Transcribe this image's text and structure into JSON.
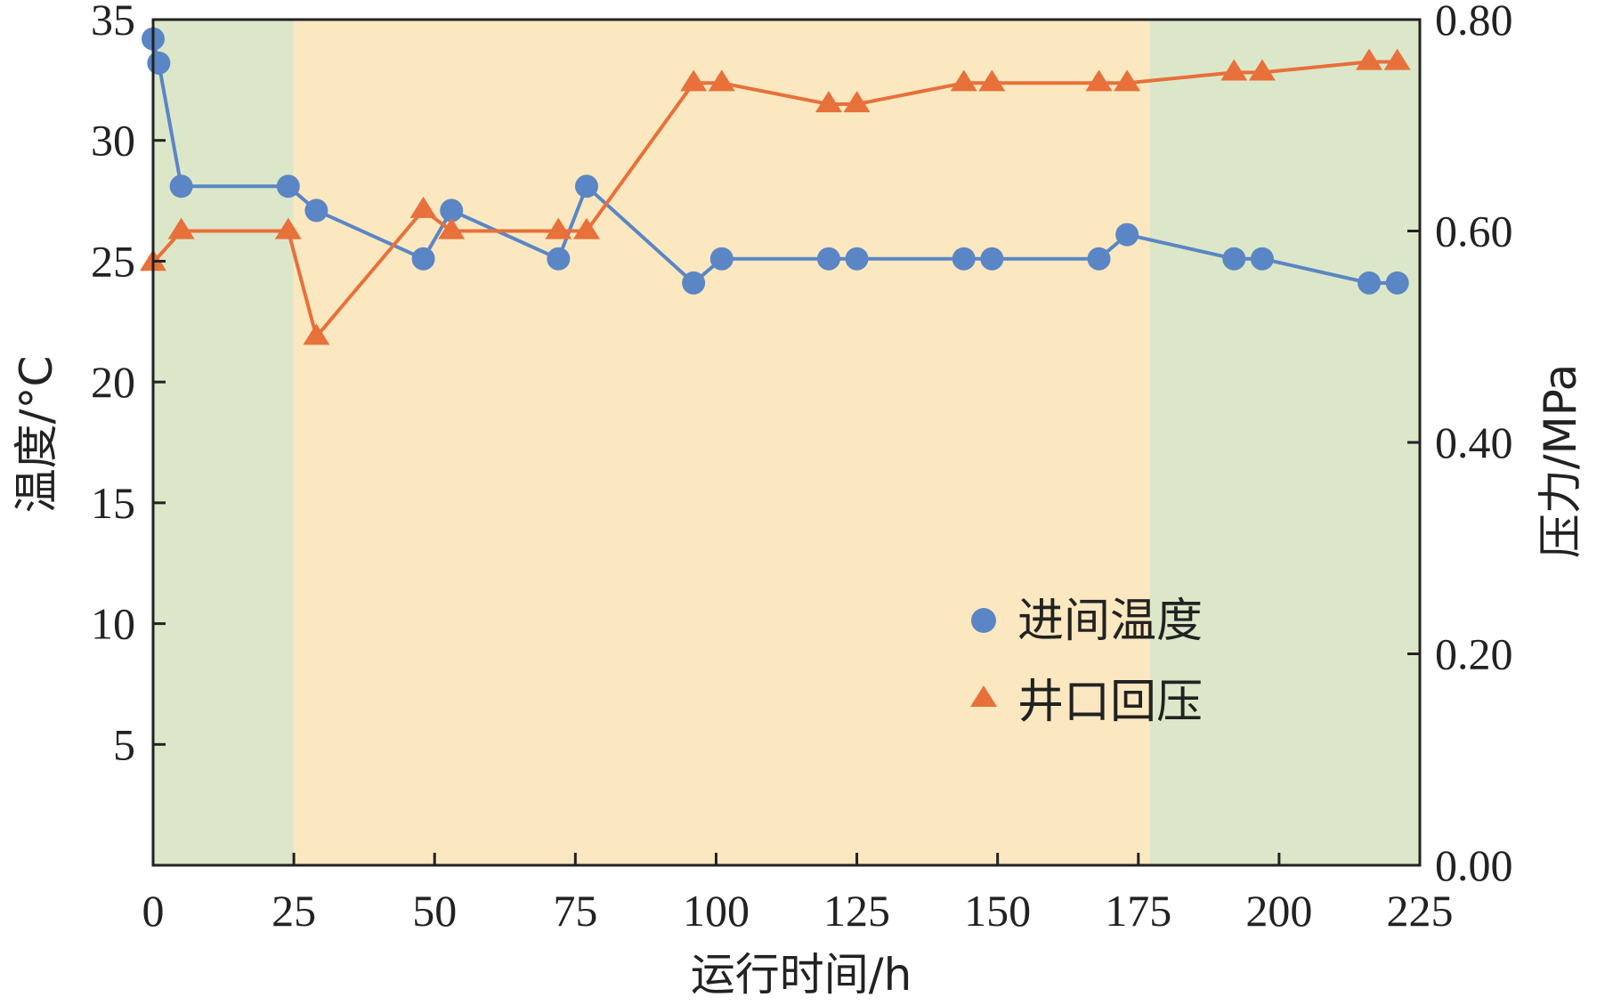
{
  "chart_data": {
    "type": "line",
    "xlabel": "运行时间/h",
    "ylabel_left": "温度/°C",
    "ylabel_right": "压力/MPa",
    "xlim": [
      0,
      225
    ],
    "ylim_left": [
      0,
      35
    ],
    "ylim_right": [
      0.0,
      0.8
    ],
    "x_ticks": [
      "0",
      "25",
      "50",
      "75",
      "100",
      "125",
      "150",
      "175",
      "200",
      "225"
    ],
    "y_left_ticks": [
      {
        "value": 5,
        "label": "5"
      },
      {
        "value": 10,
        "label": "10"
      },
      {
        "value": 15,
        "label": "15"
      },
      {
        "value": 20,
        "label": "20"
      },
      {
        "value": 25,
        "label": "25"
      },
      {
        "value": 30,
        "label": "30"
      },
      {
        "value": 35,
        "label": "35"
      }
    ],
    "y_right_ticks": [
      {
        "value": 0.0,
        "label": "0.00"
      },
      {
        "value": 0.2,
        "label": "0.20"
      },
      {
        "value": 0.4,
        "label": "0.40"
      },
      {
        "value": 0.6,
        "label": "0.60"
      },
      {
        "value": 0.8,
        "label": "0.80"
      }
    ],
    "grid": false,
    "legend_position": "center-right",
    "background_bands": [
      {
        "x_start": 0,
        "x_end": 25,
        "color": "#dce7c9"
      },
      {
        "x_start": 25,
        "x_end": 177,
        "color": "#fbe8c0"
      },
      {
        "x_start": 177,
        "x_end": 225,
        "color": "#dce7c9"
      }
    ],
    "series": [
      {
        "name": "进间温度",
        "axis": "left",
        "marker": "circle",
        "color": "#5b86c5",
        "points": [
          [
            0,
            34.2
          ],
          [
            1,
            33.2
          ],
          [
            5,
            28.1
          ],
          [
            24,
            28.1
          ],
          [
            29,
            27.1
          ],
          [
            48,
            25.1
          ],
          [
            53,
            27.1
          ],
          [
            72,
            25.1
          ],
          [
            77,
            28.1
          ],
          [
            96,
            24.1
          ],
          [
            101,
            25.1
          ],
          [
            120,
            25.1
          ],
          [
            125,
            25.1
          ],
          [
            144,
            25.1
          ],
          [
            149,
            25.1
          ],
          [
            168,
            25.1
          ],
          [
            173,
            26.1
          ],
          [
            192,
            25.1
          ],
          [
            197,
            25.1
          ],
          [
            216,
            24.1
          ],
          [
            221,
            24.1
          ]
        ]
      },
      {
        "name": "井口回压",
        "axis": "right",
        "marker": "triangle",
        "color": "#e8703a",
        "points": [
          [
            0,
            0.57
          ],
          [
            5,
            0.6
          ],
          [
            24,
            0.6
          ],
          [
            29,
            0.5
          ],
          [
            48,
            0.62
          ],
          [
            53,
            0.6
          ],
          [
            72,
            0.6
          ],
          [
            77,
            0.6
          ],
          [
            96,
            0.74
          ],
          [
            101,
            0.74
          ],
          [
            120,
            0.72
          ],
          [
            125,
            0.72
          ],
          [
            144,
            0.74
          ],
          [
            149,
            0.74
          ],
          [
            168,
            0.74
          ],
          [
            173,
            0.74
          ],
          [
            192,
            0.75
          ],
          [
            197,
            0.75
          ],
          [
            216,
            0.76
          ],
          [
            221,
            0.76
          ]
        ]
      }
    ]
  }
}
